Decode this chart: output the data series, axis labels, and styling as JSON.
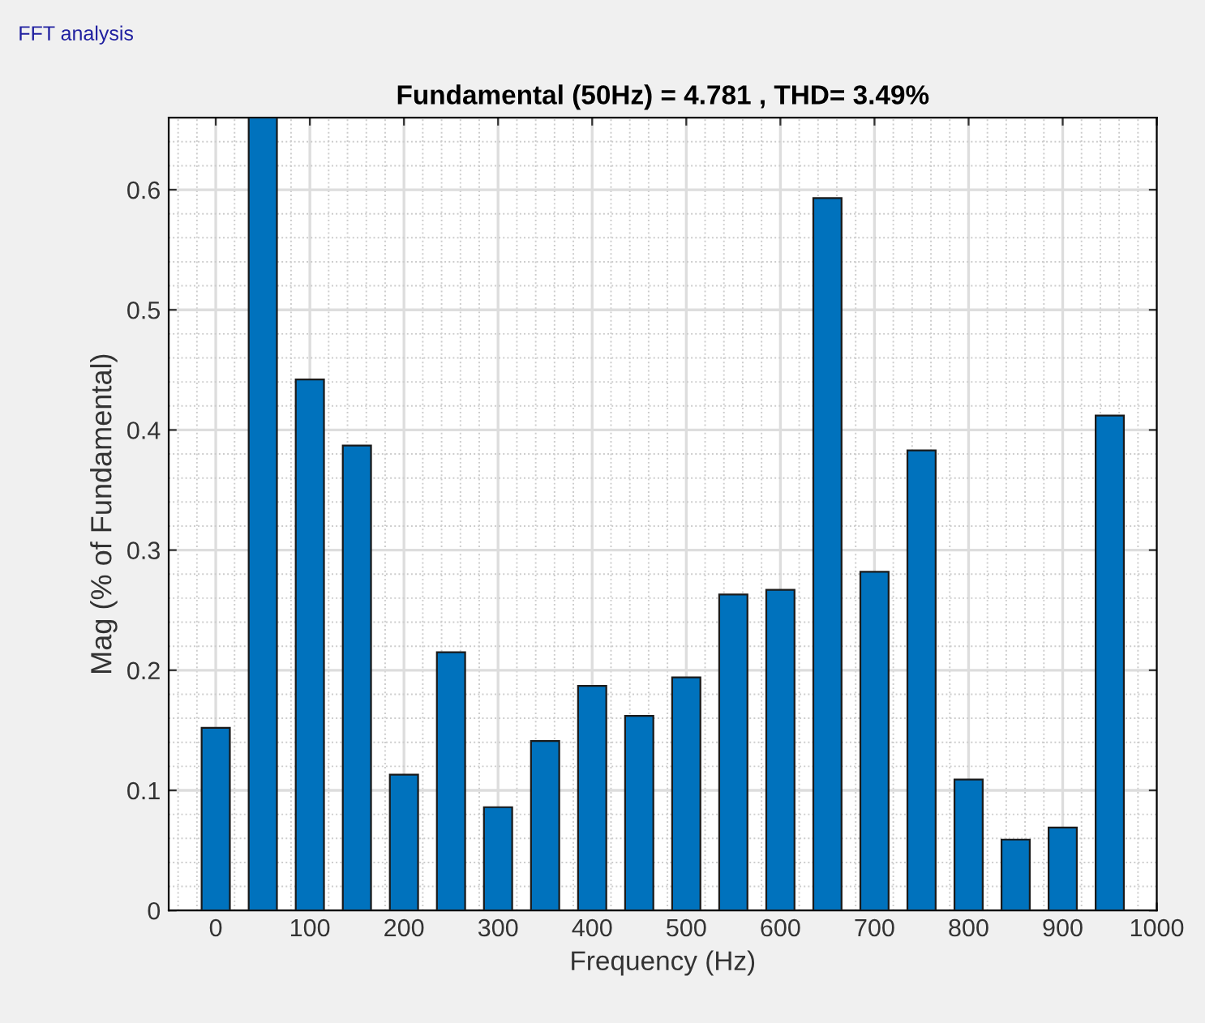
{
  "chart_data": {
    "type": "bar",
    "title": "Fundamental (50Hz) = 4.781 , THD= 3.49%",
    "xlabel": "Frequency (Hz)",
    "ylabel": "Mag (% of Fundamental)",
    "annotations": [
      "FFT analysis"
    ],
    "x": [
      0,
      50,
      100,
      150,
      200,
      250,
      300,
      350,
      400,
      450,
      500,
      550,
      600,
      650,
      700,
      750,
      800,
      850,
      900,
      950
    ],
    "values": [
      0.152,
      0.66,
      0.442,
      0.387,
      0.113,
      0.215,
      0.086,
      0.141,
      0.187,
      0.162,
      0.194,
      0.263,
      0.267,
      0.593,
      0.282,
      0.383,
      0.109,
      0.059,
      0.069,
      0.412
    ],
    "color": "#0072bd",
    "xlim": [
      -50,
      1000
    ],
    "xticks": [
      0,
      100,
      200,
      300,
      400,
      500,
      600,
      700,
      800,
      900,
      1000
    ],
    "ylim": [
      0,
      0.66
    ],
    "yticks": [
      0,
      0.1,
      0.2,
      0.3,
      0.4,
      0.5,
      0.6
    ],
    "grid": true
  }
}
